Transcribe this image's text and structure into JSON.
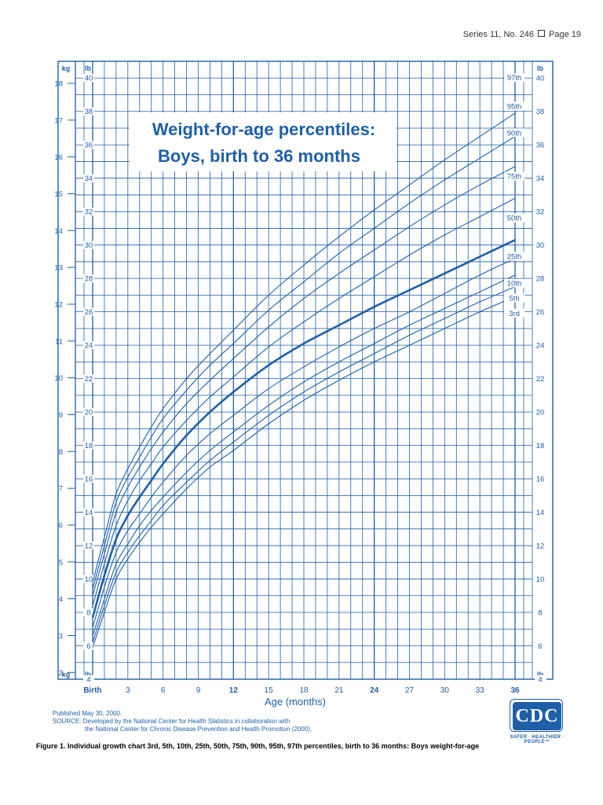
{
  "header": {
    "series": "Series 11, No. 246",
    "page": "Page 19"
  },
  "chart_data": {
    "type": "line",
    "title": "Weight-for-age percentiles:",
    "subtitle": "Boys, birth to 36 months",
    "xlabel": "Age (months)",
    "ylabel_left_kg": "kg",
    "ylabel_left_lb": "lb",
    "ylabel_right": "lb",
    "xlim": [
      0,
      36
    ],
    "ylim_lb": [
      4,
      41
    ],
    "ylim_kg": [
      2,
      18
    ],
    "grid": true,
    "x_ticks": [
      {
        "value": 0,
        "label": "Birth",
        "bold": true
      },
      {
        "value": 3,
        "label": "3",
        "bold": false
      },
      {
        "value": 6,
        "label": "6",
        "bold": false
      },
      {
        "value": 9,
        "label": "9",
        "bold": false
      },
      {
        "value": 12,
        "label": "12",
        "bold": true
      },
      {
        "value": 15,
        "label": "15",
        "bold": false
      },
      {
        "value": 18,
        "label": "18",
        "bold": false
      },
      {
        "value": 21,
        "label": "21",
        "bold": false
      },
      {
        "value": 24,
        "label": "24",
        "bold": true
      },
      {
        "value": 27,
        "label": "27",
        "bold": false
      },
      {
        "value": 30,
        "label": "30",
        "bold": false
      },
      {
        "value": 33,
        "label": "33",
        "bold": false
      },
      {
        "value": 36,
        "label": "36",
        "bold": true
      }
    ],
    "lb_ticks": [
      "4",
      "6",
      "8",
      "10",
      "12",
      "14",
      "16",
      "18",
      "20",
      "22",
      "24",
      "26",
      "28",
      "30",
      "32",
      "34",
      "36",
      "38",
      "40"
    ],
    "kg_ticks": [
      "2",
      "3",
      "4",
      "5",
      "6",
      "7",
      "8",
      "9",
      "10",
      "11",
      "12",
      "13",
      "14",
      "15",
      "16",
      "17",
      "18"
    ],
    "x": [
      0,
      1,
      2,
      3,
      4,
      5,
      6,
      8,
      10,
      12,
      15,
      18,
      21,
      24,
      27,
      30,
      33,
      36
    ],
    "series": [
      {
        "name": "97th",
        "values": [
          9.8,
          12.5,
          15.1,
          16.6,
          17.9,
          19.1,
          20.2,
          22.0,
          23.5,
          24.9,
          27.0,
          28.8,
          30.5,
          32.1,
          33.6,
          35.1,
          36.5,
          37.9
        ],
        "label_y": 40.0,
        "bold": false
      },
      {
        "name": "95th",
        "values": [
          9.4,
          12.0,
          14.6,
          16.1,
          17.3,
          18.5,
          19.6,
          21.3,
          22.8,
          24.1,
          26.1,
          27.8,
          29.5,
          31.0,
          32.5,
          33.9,
          35.2,
          36.5
        ],
        "label_y": 38.3,
        "bold": false
      },
      {
        "name": "90th",
        "values": [
          9.0,
          11.5,
          14.0,
          15.5,
          16.7,
          17.8,
          18.8,
          20.5,
          21.9,
          23.2,
          25.1,
          26.8,
          28.3,
          29.7,
          31.1,
          32.4,
          33.6,
          34.7
        ],
        "label_y": 36.7,
        "bold": false
      },
      {
        "name": "75th",
        "values": [
          8.4,
          10.9,
          13.2,
          14.7,
          15.9,
          16.9,
          17.9,
          19.5,
          20.9,
          22.1,
          23.9,
          25.4,
          26.8,
          28.1,
          29.4,
          30.6,
          31.7,
          32.8
        ],
        "label_y": 34.1,
        "bold": false
      },
      {
        "name": "50th",
        "values": [
          7.7,
          10.2,
          12.4,
          13.8,
          14.9,
          15.9,
          16.9,
          18.6,
          20.0,
          21.2,
          22.8,
          24.1,
          25.2,
          26.3,
          27.3,
          28.3,
          29.3,
          30.3
        ],
        "label_y": 31.6,
        "bold": true
      },
      {
        "name": "25th",
        "values": [
          7.1,
          9.5,
          11.6,
          12.9,
          13.9,
          14.9,
          15.8,
          17.4,
          18.7,
          19.8,
          21.4,
          22.7,
          23.9,
          25.0,
          26.0,
          27.1,
          28.2,
          29.2
        ],
        "label_y": 29.3,
        "bold": false
      },
      {
        "name": "10th",
        "values": [
          6.6,
          8.8,
          10.9,
          12.1,
          13.2,
          14.1,
          14.9,
          16.4,
          17.7,
          18.8,
          20.4,
          21.8,
          23.0,
          24.1,
          25.2,
          26.2,
          27.2,
          28.2
        ],
        "label_y": 27.7,
        "bold": false
      },
      {
        "name": "5th",
        "values": [
          6.2,
          8.4,
          10.4,
          11.6,
          12.6,
          13.5,
          14.4,
          15.8,
          17.1,
          18.2,
          19.8,
          21.2,
          22.4,
          23.5,
          24.6,
          25.6,
          26.6,
          27.5
        ],
        "label_y": 26.8,
        "bold": false
      },
      {
        "name": "3rd",
        "values": [
          5.9,
          8.0,
          10.0,
          11.2,
          12.2,
          13.1,
          13.9,
          15.4,
          16.7,
          17.7,
          19.3,
          20.7,
          21.9,
          23.0,
          24.0,
          25.0,
          26.0,
          26.9
        ],
        "label_y": 25.9,
        "bold": false
      }
    ],
    "colors": {
      "grid": "#1f5fa8",
      "curves": "#1f5fa8",
      "title": "#1f5fa8"
    }
  },
  "footer": {
    "published": "Published May 30, 2000.",
    "source_line1": "SOURCE: Developed by the National Center for Health Statistics in collaboration with",
    "source_line2": "the National Center for Chronic Disease Prevention and Health Promotion (2000)."
  },
  "logo": {
    "text": "CDC",
    "tagline": "SAFER · HEALTHIER · PEOPLE™"
  },
  "caption": "Figure 1. Individual growth chart 3rd, 5th, 10th, 25th, 50th, 75th, 90th, 95th, 97th percentiles, birth to 36 months: Boys weight-for-age"
}
